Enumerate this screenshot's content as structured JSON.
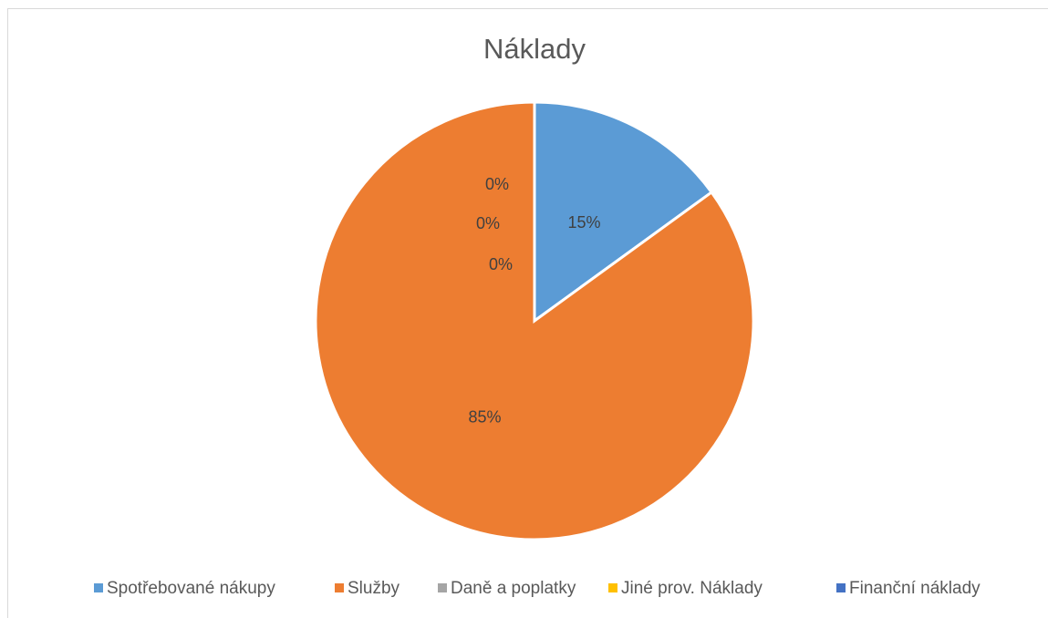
{
  "chart_data": {
    "type": "pie",
    "title": "Náklady",
    "categories": [
      "Spotřebované nákupy",
      "Služby",
      "Daně a poplatky",
      "Jiné prov. Náklady",
      "Finanční náklady"
    ],
    "values": [
      15,
      85,
      0,
      0,
      0
    ],
    "value_labels": [
      "15%",
      "85%",
      "0%",
      "0%",
      "0%"
    ],
    "colors": [
      "#5b9bd5",
      "#ed7d31",
      "#a5a5a5",
      "#ffc000",
      "#4472c4"
    ],
    "legend": "bottom"
  }
}
